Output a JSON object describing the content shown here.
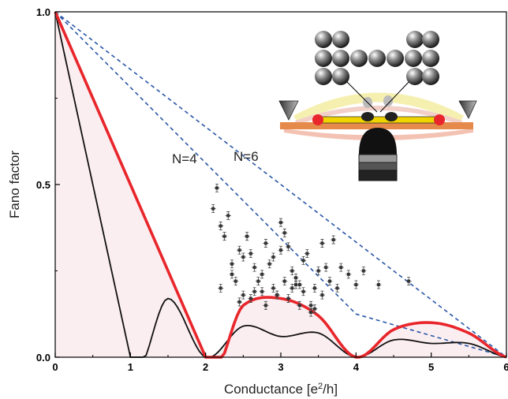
{
  "chart_data": {
    "type": "scatter",
    "title": "",
    "xlabel": "Conductance [e²/h]",
    "ylabel": "Fano factor",
    "xlim": [
      0,
      6
    ],
    "ylim": [
      0,
      1
    ],
    "x_ticks": [
      "0",
      "1",
      "2",
      "3",
      "4",
      "5",
      "6"
    ],
    "y_ticks": [
      "0.0",
      "0.5",
      "1.0"
    ],
    "grid": false,
    "annotations": [
      "N=4",
      "N=6"
    ],
    "colors": {
      "red_curve": "#e8262b",
      "black_curve": "#111111",
      "dashed": "#2a56a8",
      "shade_gray": "#eef1ee",
      "shade_pink": "#fbeef0",
      "points": "#333333"
    },
    "series": [
      {
        "type": "line",
        "x": [
          0,
          1,
          1.5,
          2,
          2.5,
          3,
          3.5,
          4,
          4.5,
          5,
          5.5,
          6
        ],
        "y": [
          1,
          0,
          0.17,
          0,
          0.09,
          0.06,
          0.07,
          0,
          0.05,
          0.04,
          0.04,
          0
        ]
      },
      {
        "type": "line",
        "x": [
          0,
          2,
          2.5,
          3,
          3.5,
          4,
          4.5,
          5,
          5.5,
          6
        ],
        "y": [
          1,
          0,
          0.15,
          0.17,
          0.12,
          0,
          0.08,
          0.1,
          0.07,
          0
        ]
      },
      {
        "type": "dashed-line",
        "x": [
          0,
          4,
          6
        ],
        "y": [
          1,
          0.125,
          0
        ]
      },
      {
        "type": "dashed-line",
        "x": [
          0,
          6
        ],
        "y": [
          1,
          0
        ]
      },
      {
        "type": "scatter",
        "x": [
          2.1,
          2.15,
          2.2,
          2.25,
          2.3,
          2.35,
          2.4,
          2.45,
          2.5,
          2.55,
          2.6,
          2.65,
          2.7,
          2.75,
          2.8,
          2.85,
          2.9,
          2.95,
          3.0,
          3.05,
          3.1,
          3.15,
          3.2,
          3.25,
          3.3,
          3.35,
          3.4,
          3.45,
          3.5,
          3.55,
          3.6,
          3.65,
          3.7,
          3.75,
          3.8,
          3.9,
          4.0,
          4.1,
          4.3,
          4.7,
          2.2,
          2.35,
          2.5,
          2.6,
          2.75,
          2.9,
          3.05,
          3.15,
          3.3,
          3.45,
          2.8,
          2.95,
          3.1,
          3.25,
          3.4,
          3.55,
          3.2,
          3.0,
          2.65,
          2.45
        ],
        "y": [
          0.43,
          0.49,
          0.38,
          0.35,
          0.41,
          0.24,
          0.22,
          0.31,
          0.29,
          0.35,
          0.3,
          0.26,
          0.22,
          0.19,
          0.33,
          0.27,
          0.2,
          0.18,
          0.39,
          0.36,
          0.32,
          0.25,
          0.23,
          0.21,
          0.28,
          0.3,
          0.15,
          0.2,
          0.25,
          0.33,
          0.26,
          0.22,
          0.34,
          0.2,
          0.26,
          0.24,
          0.21,
          0.25,
          0.21,
          0.22,
          0.2,
          0.27,
          0.18,
          0.17,
          0.24,
          0.29,
          0.22,
          0.2,
          0.19,
          0.14,
          0.15,
          0.18,
          0.17,
          0.15,
          0.13,
          0.18,
          0.21,
          0.31,
          0.19,
          0.16
        ]
      }
    ]
  }
}
